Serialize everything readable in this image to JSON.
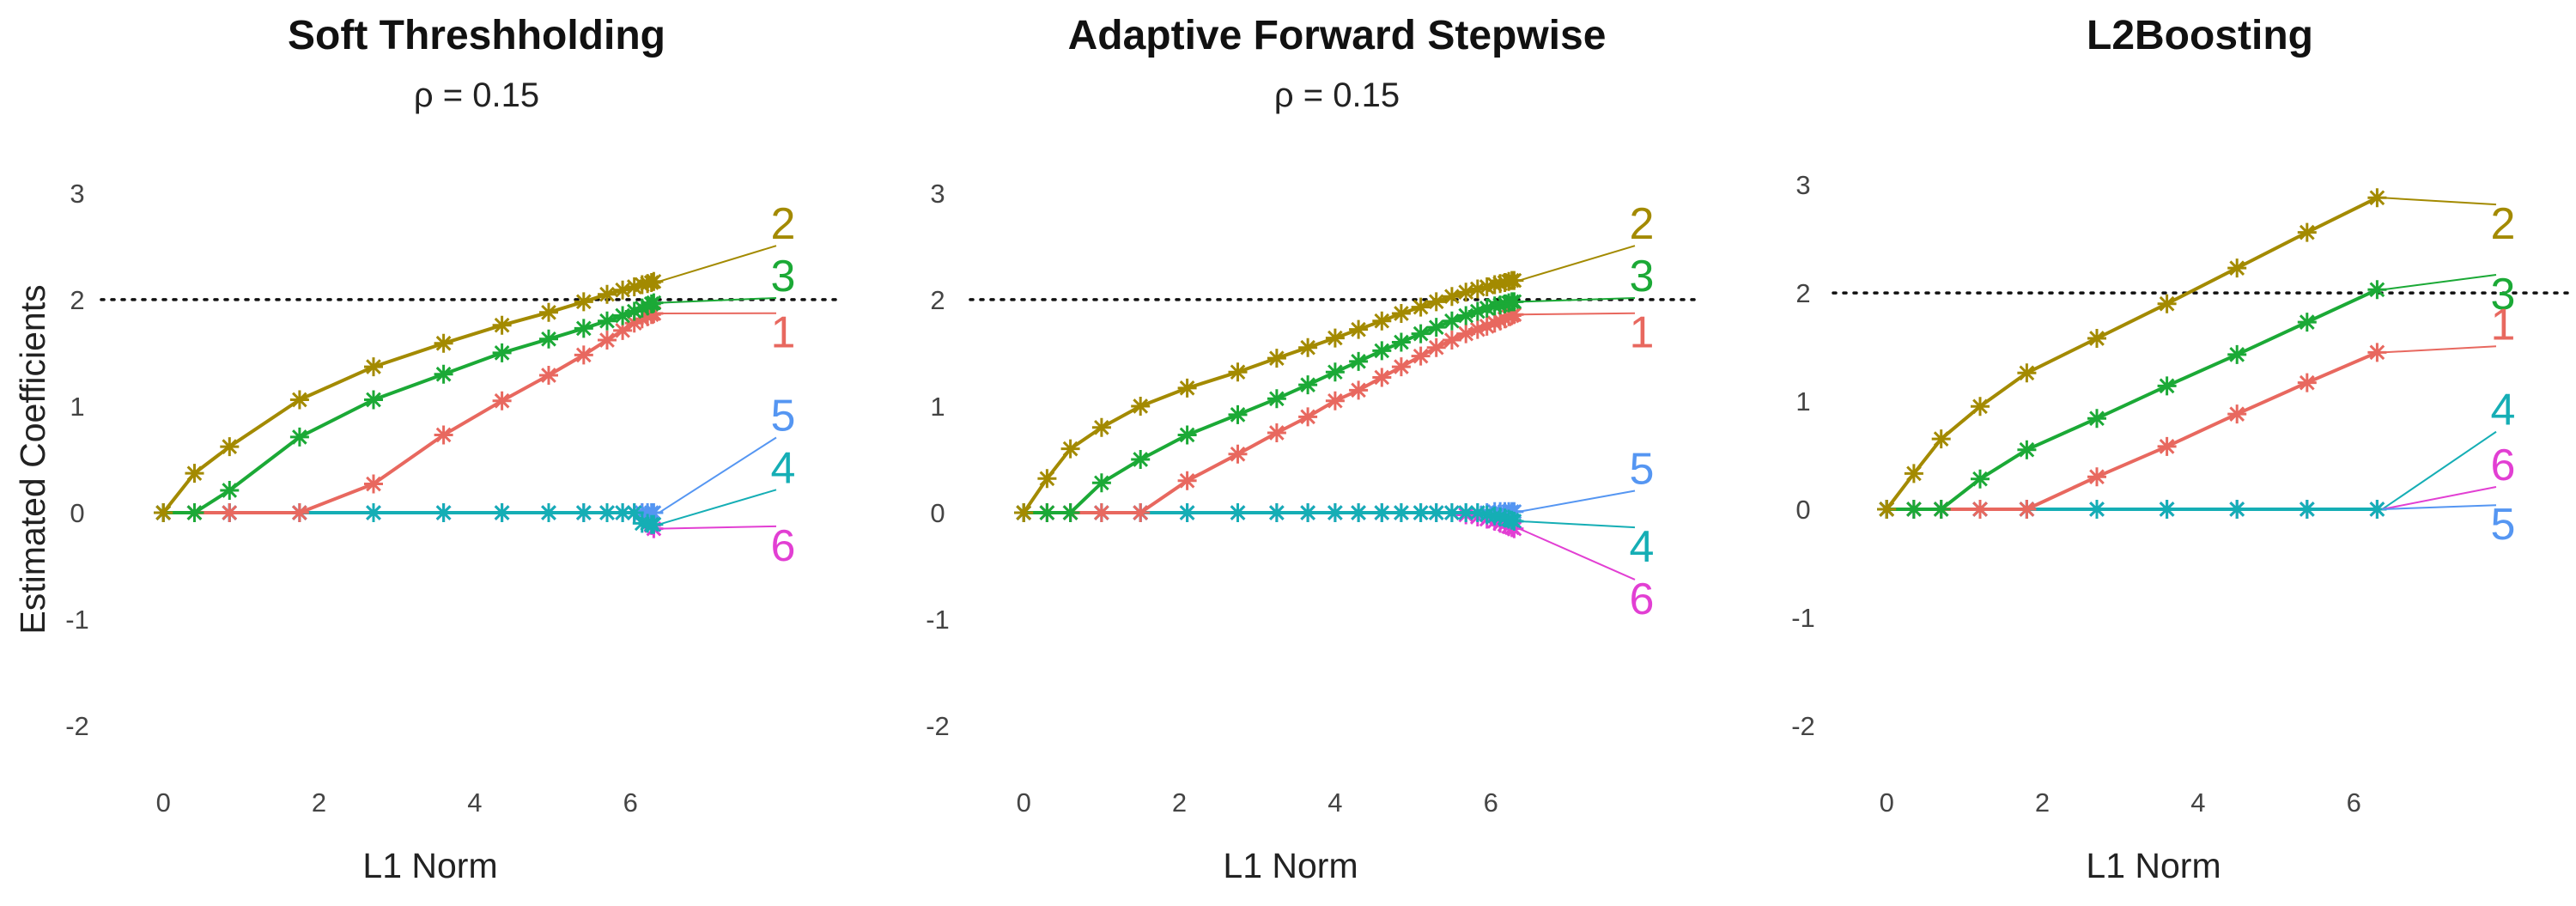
{
  "figure": {
    "ylabel": "Estimated Coefficients",
    "reference_line": 2,
    "colors": {
      "1": "#E8685F",
      "2": "#A38A00",
      "3": "#1BA936",
      "4": "#15AEB5",
      "5": "#5596F2",
      "6": "#E23FD3"
    }
  },
  "chart_data": [
    {
      "type": "line",
      "title": "Soft Threshholding",
      "subtitle": "ρ = 0.15",
      "xlabel": "L1 Norm",
      "ylabel": "Estimated Coefficients",
      "xlim": [
        -0.3,
        7.2
      ],
      "ylim": [
        -2.2,
        3.2
      ],
      "xticks": [
        0,
        2,
        4,
        6
      ],
      "yticks": [
        -2,
        -1,
        0,
        1,
        2,
        3
      ],
      "x": [
        0,
        0.4,
        0.85,
        1.75,
        2.7,
        3.6,
        4.35,
        4.95,
        5.4,
        5.7,
        5.9,
        6.05,
        6.15,
        6.22,
        6.27,
        6.3
      ],
      "series": [
        {
          "name": "1",
          "values": [
            0,
            0,
            0,
            0,
            0.27,
            0.73,
            1.05,
            1.29,
            1.48,
            1.62,
            1.71,
            1.78,
            1.82,
            1.84,
            1.86,
            1.87
          ]
        },
        {
          "name": "2",
          "values": [
            0,
            0.37,
            0.62,
            1.06,
            1.37,
            1.59,
            1.76,
            1.88,
            1.98,
            2.05,
            2.09,
            2.12,
            2.14,
            2.15,
            2.16,
            2.17
          ]
        },
        {
          "name": "3",
          "values": [
            0,
            0,
            0.21,
            0.71,
            1.06,
            1.3,
            1.5,
            1.63,
            1.73,
            1.8,
            1.85,
            1.89,
            1.92,
            1.94,
            1.96,
            1.97
          ]
        },
        {
          "name": "4",
          "values": [
            0,
            0,
            0,
            0,
            0,
            0,
            0,
            0,
            0,
            0,
            0,
            0,
            -0.1,
            -0.1,
            -0.11,
            -0.11
          ]
        },
        {
          "name": "5",
          "values": [
            0,
            0,
            0,
            0,
            0,
            0,
            0,
            0,
            0,
            0,
            0,
            0,
            0,
            0,
            0,
            0
          ]
        },
        {
          "name": "6",
          "values": [
            0,
            0,
            0,
            0,
            0,
            0,
            0,
            0,
            0,
            0,
            0,
            0,
            0,
            -0.06,
            -0.12,
            -0.15
          ]
        }
      ],
      "end_labels": [
        {
          "name": "2",
          "y": 2.57
        },
        {
          "name": "3",
          "y": 2.08
        },
        {
          "name": "1",
          "y": 1.55
        },
        {
          "name": "5",
          "y": 0.77
        },
        {
          "name": "4",
          "y": 0.28
        },
        {
          "name": "6",
          "y": -0.45
        }
      ]
    },
    {
      "type": "line",
      "title": "Adaptive Forward Stepwise",
      "subtitle": "ρ = 0.15",
      "xlabel": "L1 Norm",
      "ylabel": "",
      "xlim": [
        -0.3,
        7.2
      ],
      "ylim": [
        -2.2,
        3.2
      ],
      "xticks": [
        0,
        2,
        4,
        6
      ],
      "yticks": [
        -2,
        -1,
        0,
        1,
        2,
        3
      ],
      "x": [
        0,
        0.3,
        0.6,
        1.0,
        1.5,
        2.1,
        2.75,
        3.25,
        3.65,
        4.0,
        4.3,
        4.6,
        4.85,
        5.1,
        5.3,
        5.5,
        5.68,
        5.83,
        5.95,
        6.05,
        6.12,
        6.18,
        6.23,
        6.27,
        6.3
      ],
      "series": [
        {
          "name": "1",
          "values": [
            0,
            0,
            0,
            0,
            0,
            0.3,
            0.55,
            0.75,
            0.9,
            1.05,
            1.15,
            1.27,
            1.37,
            1.47,
            1.55,
            1.62,
            1.68,
            1.72,
            1.75,
            1.78,
            1.8,
            1.82,
            1.84,
            1.85,
            1.86
          ]
        },
        {
          "name": "2",
          "values": [
            0,
            0.32,
            0.6,
            0.8,
            1.0,
            1.17,
            1.32,
            1.45,
            1.55,
            1.64,
            1.72,
            1.8,
            1.87,
            1.93,
            1.98,
            2.03,
            2.07,
            2.1,
            2.12,
            2.14,
            2.15,
            2.16,
            2.17,
            2.18,
            2.18
          ]
        },
        {
          "name": "3",
          "values": [
            0,
            0,
            0,
            0.28,
            0.5,
            0.73,
            0.92,
            1.07,
            1.2,
            1.32,
            1.42,
            1.52,
            1.6,
            1.68,
            1.74,
            1.8,
            1.85,
            1.89,
            1.92,
            1.94,
            1.95,
            1.96,
            1.97,
            1.98,
            1.98
          ]
        },
        {
          "name": "4",
          "values": [
            0,
            0,
            0,
            0,
            0,
            0,
            0,
            0,
            0,
            0,
            0,
            0,
            0,
            0,
            0,
            0,
            0,
            0,
            -0.02,
            -0.03,
            -0.04,
            -0.05,
            -0.06,
            -0.07,
            -0.08
          ]
        },
        {
          "name": "5",
          "values": [
            0,
            0,
            0,
            0,
            0,
            0,
            0,
            0,
            0,
            0,
            0,
            0,
            0,
            0,
            0,
            0,
            0,
            0,
            0,
            0.01,
            0.01,
            0.01,
            0.01,
            0.01,
            0.01
          ]
        },
        {
          "name": "6",
          "values": [
            0,
            0,
            0,
            0,
            0,
            0,
            0,
            0,
            0,
            0,
            0,
            0,
            0,
            0,
            0,
            0,
            -0.02,
            -0.04,
            -0.06,
            -0.08,
            -0.1,
            -0.11,
            -0.13,
            -0.14,
            -0.15
          ]
        }
      ],
      "end_labels": [
        {
          "name": "2",
          "y": 2.57
        },
        {
          "name": "3",
          "y": 2.08
        },
        {
          "name": "1",
          "y": 1.55
        },
        {
          "name": "5",
          "y": 0.27
        },
        {
          "name": "4",
          "y": -0.46
        },
        {
          "name": "6",
          "y": -0.95
        }
      ]
    },
    {
      "type": "line",
      "title": "L2Boosting",
      "subtitle": "",
      "xlabel": "L1 Norm",
      "ylabel": "",
      "xlim": [
        -0.3,
        7.2
      ],
      "ylim": [
        -2.2,
        3.2
      ],
      "xticks": [
        0,
        2,
        4,
        6
      ],
      "yticks": [
        -2,
        -1,
        0,
        1,
        2,
        3
      ],
      "x": [
        0,
        0.35,
        0.7,
        1.2,
        1.8,
        2.7,
        3.6,
        4.5,
        5.4,
        6.3
      ],
      "series": [
        {
          "name": "1",
          "values": [
            0,
            0,
            0,
            0,
            0,
            0.3,
            0.58,
            0.88,
            1.17,
            1.45
          ]
        },
        {
          "name": "2",
          "values": [
            0,
            0.33,
            0.65,
            0.95,
            1.26,
            1.58,
            1.9,
            2.23,
            2.56,
            2.88
          ]
        },
        {
          "name": "3",
          "values": [
            0,
            0,
            0,
            0.28,
            0.55,
            0.84,
            1.14,
            1.43,
            1.73,
            2.03
          ]
        },
        {
          "name": "4",
          "values": [
            0,
            0,
            0,
            0,
            0,
            0,
            0,
            0,
            0,
            0
          ]
        },
        {
          "name": "5",
          "values": [
            0,
            0,
            0,
            0,
            0,
            0,
            0,
            0,
            0,
            0
          ]
        },
        {
          "name": "6",
          "values": [
            0,
            0,
            0,
            0,
            0,
            0,
            0,
            0,
            0,
            0
          ]
        }
      ],
      "end_labels": [
        {
          "name": "2",
          "y": 2.5
        },
        {
          "name": "3",
          "y": 1.85
        },
        {
          "name": "1",
          "y": 1.57
        },
        {
          "name": "4",
          "y": 0.78
        },
        {
          "name": "6",
          "y": 0.27
        },
        {
          "name": "5",
          "y": -0.28
        }
      ]
    }
  ]
}
